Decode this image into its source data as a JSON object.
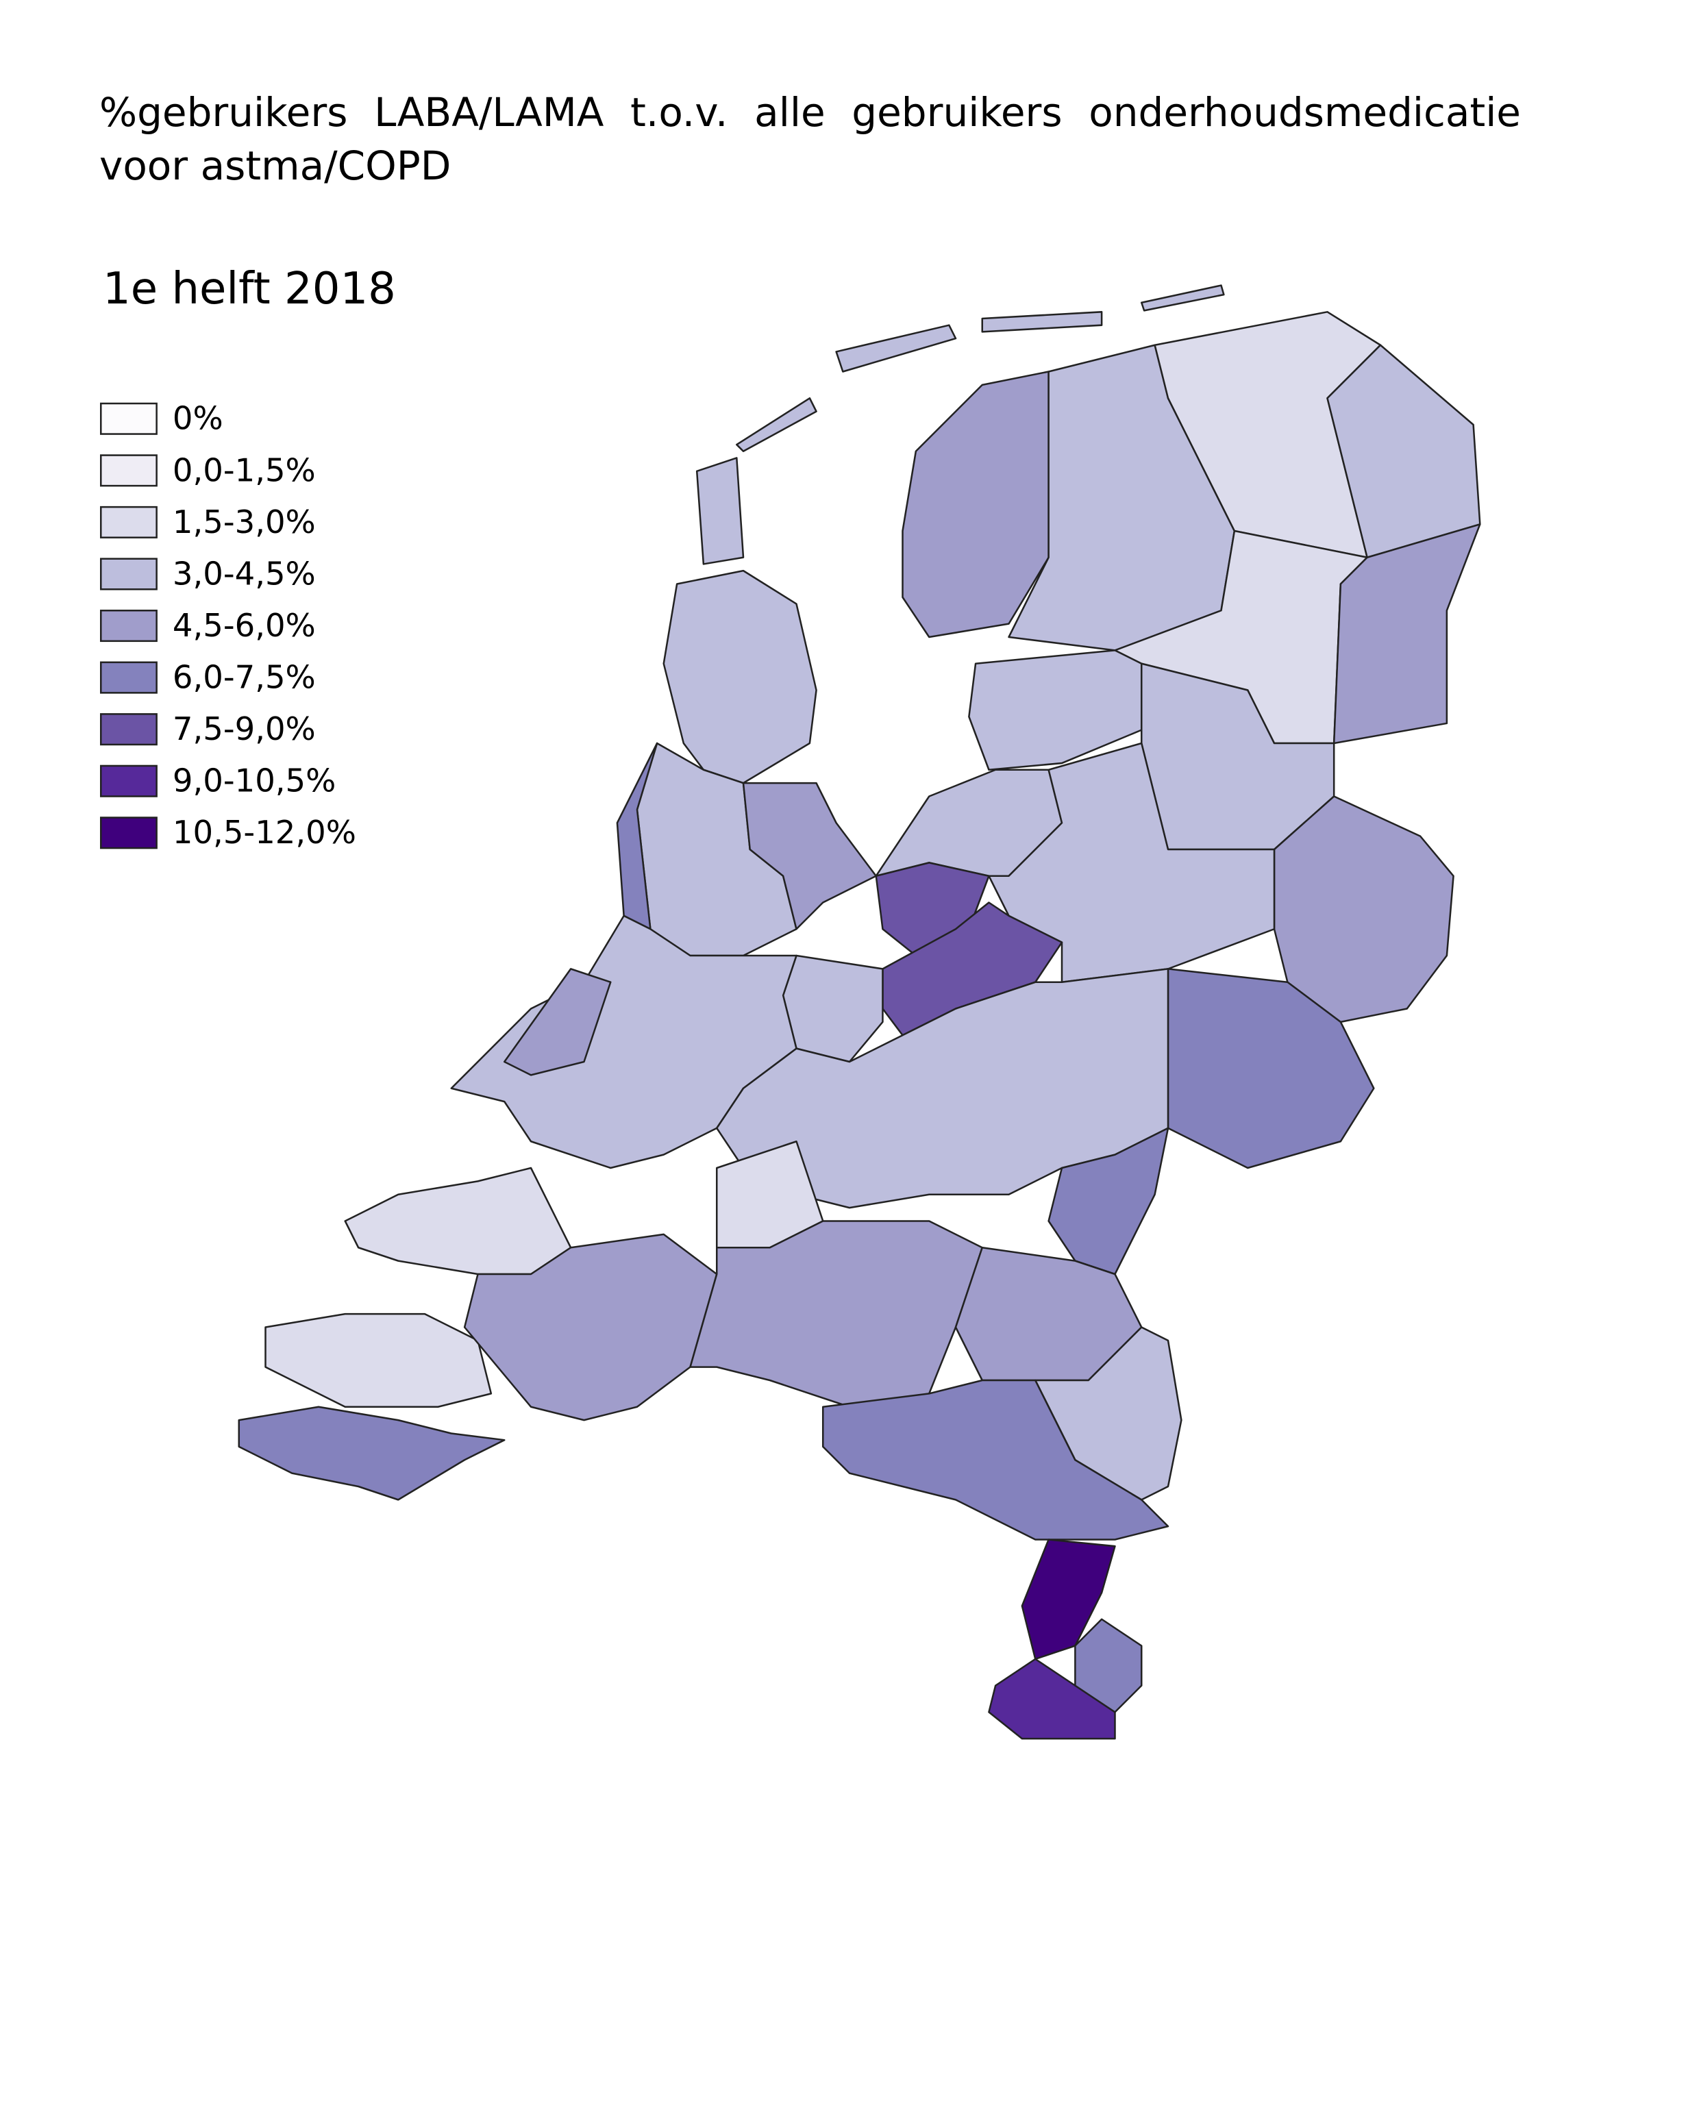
{
  "title": "%gebruikers LABA/LAMA t.o.v. alle gebruikers onderhoudsmedicatie voor astma/COPD",
  "subtitle": "1e helft 2018",
  "legend": [
    {
      "label": "0%",
      "color": "#fcfbfd"
    },
    {
      "label": "0,0-1,5%",
      "color": "#efedf5"
    },
    {
      "label": "1,5-3,0%",
      "color": "#dcdcec"
    },
    {
      "label": "3,0-4,5%",
      "color": "#bdbedd"
    },
    {
      "label": "4,5-6,0%",
      "color": "#a09dcb"
    },
    {
      "label": "6,0-7,5%",
      "color": "#8482bd"
    },
    {
      "label": "7,5-9,0%",
      "color": "#6b54a5"
    },
    {
      "label": "9,0-10,5%",
      "color": "#56299a"
    },
    {
      "label": "10,5-12,0%",
      "color": "#3f007d"
    }
  ]
}
